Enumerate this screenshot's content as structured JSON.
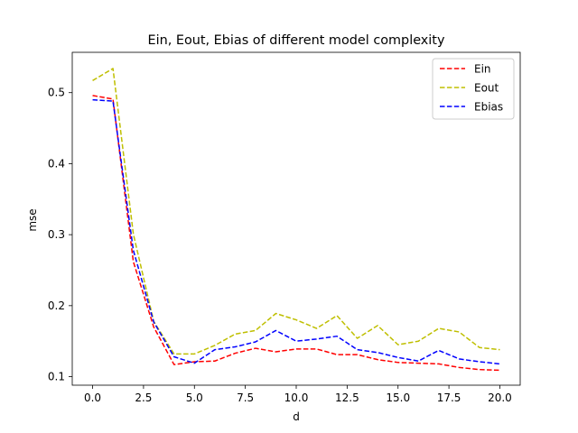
{
  "chart_data": {
    "type": "line",
    "title": "Ein, Eout, Ebias of different model complexity",
    "xlabel": "d",
    "ylabel": "mse",
    "xlim": [
      -1.0,
      21.0
    ],
    "ylim": [
      0.088,
      0.5568
    ],
    "xticks": [
      0.0,
      2.5,
      5.0,
      7.5,
      10.0,
      12.5,
      15.0,
      17.5,
      20.0
    ],
    "xtick_labels": [
      "0.0",
      "2.5",
      "5.0",
      "7.5",
      "10.0",
      "12.5",
      "15.0",
      "17.5",
      "20.0"
    ],
    "yticks": [
      0.1,
      0.2,
      0.3,
      0.4,
      0.5
    ],
    "ytick_labels": [
      "0.1",
      "0.2",
      "0.3",
      "0.4",
      "0.5"
    ],
    "grid": false,
    "legend_position": "top-right",
    "x": [
      0,
      1,
      2,
      3,
      4,
      5,
      6,
      7,
      8,
      9,
      10,
      11,
      12,
      13,
      14,
      15,
      16,
      17,
      18,
      19,
      20
    ],
    "series": [
      {
        "name": "Ein",
        "color": "#ff0000",
        "style": "dashed",
        "values": [
          0.496,
          0.491,
          0.262,
          0.17,
          0.117,
          0.121,
          0.122,
          0.133,
          0.14,
          0.135,
          0.139,
          0.139,
          0.131,
          0.131,
          0.124,
          0.12,
          0.119,
          0.118,
          0.113,
          0.11,
          0.109
        ]
      },
      {
        "name": "Eout",
        "color": "#bfbf00",
        "style": "dashed",
        "values": [
          0.517,
          0.534,
          0.301,
          0.178,
          0.132,
          0.132,
          0.144,
          0.16,
          0.165,
          0.189,
          0.18,
          0.168,
          0.186,
          0.154,
          0.172,
          0.145,
          0.15,
          0.168,
          0.163,
          0.141,
          0.138
        ]
      },
      {
        "name": "Ebias",
        "color": "#0000ff",
        "style": "dashed",
        "values": [
          0.49,
          0.488,
          0.278,
          0.177,
          0.128,
          0.119,
          0.138,
          0.142,
          0.149,
          0.165,
          0.15,
          0.153,
          0.157,
          0.138,
          0.134,
          0.127,
          0.122,
          0.137,
          0.125,
          0.121,
          0.118
        ]
      }
    ]
  }
}
